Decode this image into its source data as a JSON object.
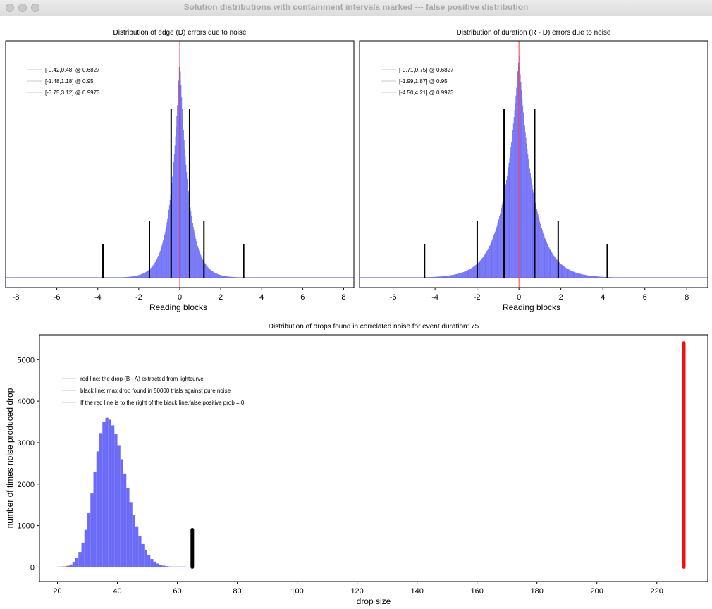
{
  "window": {
    "title": "Solution distributions with containment intervals marked --- false positive distribution"
  },
  "chart_data": [
    {
      "type": "bar",
      "title": "Distribution of edge (D) errors due to noise",
      "xlabel": "Reading blocks",
      "ylabel": "",
      "xlim": [
        -8.5,
        8.5
      ],
      "xticks": [
        -8,
        -6,
        -4,
        -2,
        0,
        2,
        4,
        6,
        8
      ],
      "legend_position": "top-left",
      "legend": [
        "[-0.42,0.48] @ 0.6827",
        "[-1.48,1.18] @ 0.95",
        "[-3.75,3.12] @ 0.9973"
      ],
      "intervals": [
        {
          "lo": -0.42,
          "hi": 0.48,
          "level": 0.6827
        },
        {
          "lo": -1.48,
          "hi": 1.18,
          "level": 0.95
        },
        {
          "lo": -3.75,
          "hi": 3.12,
          "level": 0.9973
        }
      ],
      "peak_relative_height": 1.0,
      "center_line_x": 0,
      "colors": {
        "histogram": "#6b6bf7",
        "center_line": "#ff3b3b",
        "interval_lines": "#000000"
      }
    },
    {
      "type": "bar",
      "title": "Distribution of duration (R - D) errors due to noise",
      "xlabel": "Reading blocks",
      "ylabel": "",
      "xlim": [
        -7.6,
        9.0
      ],
      "xticks": [
        -6,
        -4,
        -2,
        0,
        2,
        4,
        6,
        8
      ],
      "legend_position": "top-left",
      "legend": [
        "[-0.71,0.75] @ 0.6827",
        "[-1.99,1.87] @ 0.95",
        "[-4.50,4.21] @ 0.9973"
      ],
      "intervals": [
        {
          "lo": -0.71,
          "hi": 0.75,
          "level": 0.6827
        },
        {
          "lo": -1.99,
          "hi": 1.87,
          "level": 0.95
        },
        {
          "lo": -4.5,
          "hi": 4.21,
          "level": 0.9973
        }
      ],
      "center_line_x": 0,
      "colors": {
        "histogram": "#6b6bf7",
        "center_line": "#ff3b3b",
        "interval_lines": "#000000"
      }
    },
    {
      "type": "bar",
      "title": "Distribution of drops found in correlated noise for event duration: 75",
      "xlabel": "drop size",
      "ylabel": "number of times noise produced drop",
      "xlim": [
        14,
        237
      ],
      "ylim": [
        -350,
        5600
      ],
      "xticks": [
        20,
        40,
        60,
        80,
        100,
        120,
        140,
        160,
        180,
        200,
        220
      ],
      "yticks": [
        0,
        1000,
        2000,
        3000,
        4000,
        5000
      ],
      "legend_position": "top-left",
      "legend": [
        "red line: the drop (B - A) extracted from lightcurve",
        "black line: max drop found in 50000 trials against pure noise",
        "If the red line is to the right of the black line,false positive prob = 0"
      ],
      "histogram_peak": {
        "x": 36.5,
        "count": 3600
      },
      "black_line": {
        "x": 65,
        "y_top": 900
      },
      "red_line": {
        "x": 229,
        "y_top": 5400
      },
      "colors": {
        "histogram": "#6b6bf7",
        "red_line": "#ee1111",
        "black_line": "#000000"
      }
    }
  ]
}
